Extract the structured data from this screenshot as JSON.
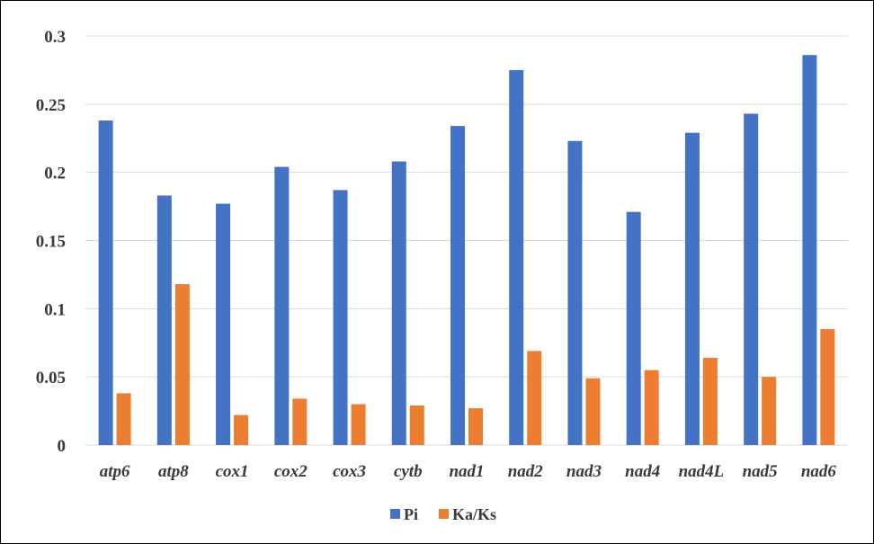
{
  "chart_data": {
    "type": "bar",
    "categories": [
      "atp6",
      "atp8",
      "cox1",
      "cox2",
      "cox3",
      "cytb",
      "nad1",
      "nad2",
      "nad3",
      "nad4",
      "nad4L",
      "nad5",
      "nad6"
    ],
    "series": [
      {
        "name": "Pi",
        "color": "#4472c4",
        "values": [
          0.238,
          0.183,
          0.177,
          0.204,
          0.187,
          0.208,
          0.234,
          0.275,
          0.223,
          0.171,
          0.229,
          0.243,
          0.286
        ]
      },
      {
        "name": "Ka/Ks",
        "color": "#ed7d31",
        "values": [
          0.038,
          0.118,
          0.022,
          0.034,
          0.03,
          0.029,
          0.027,
          0.069,
          0.049,
          0.055,
          0.064,
          0.05,
          0.085
        ]
      }
    ],
    "yticks": [
      "0",
      "0.05",
      "0.1",
      "0.15",
      "0.2",
      "0.25",
      "0.3"
    ],
    "ylim": [
      0,
      0.3
    ],
    "grid": true,
    "legend_position": "bottom"
  }
}
